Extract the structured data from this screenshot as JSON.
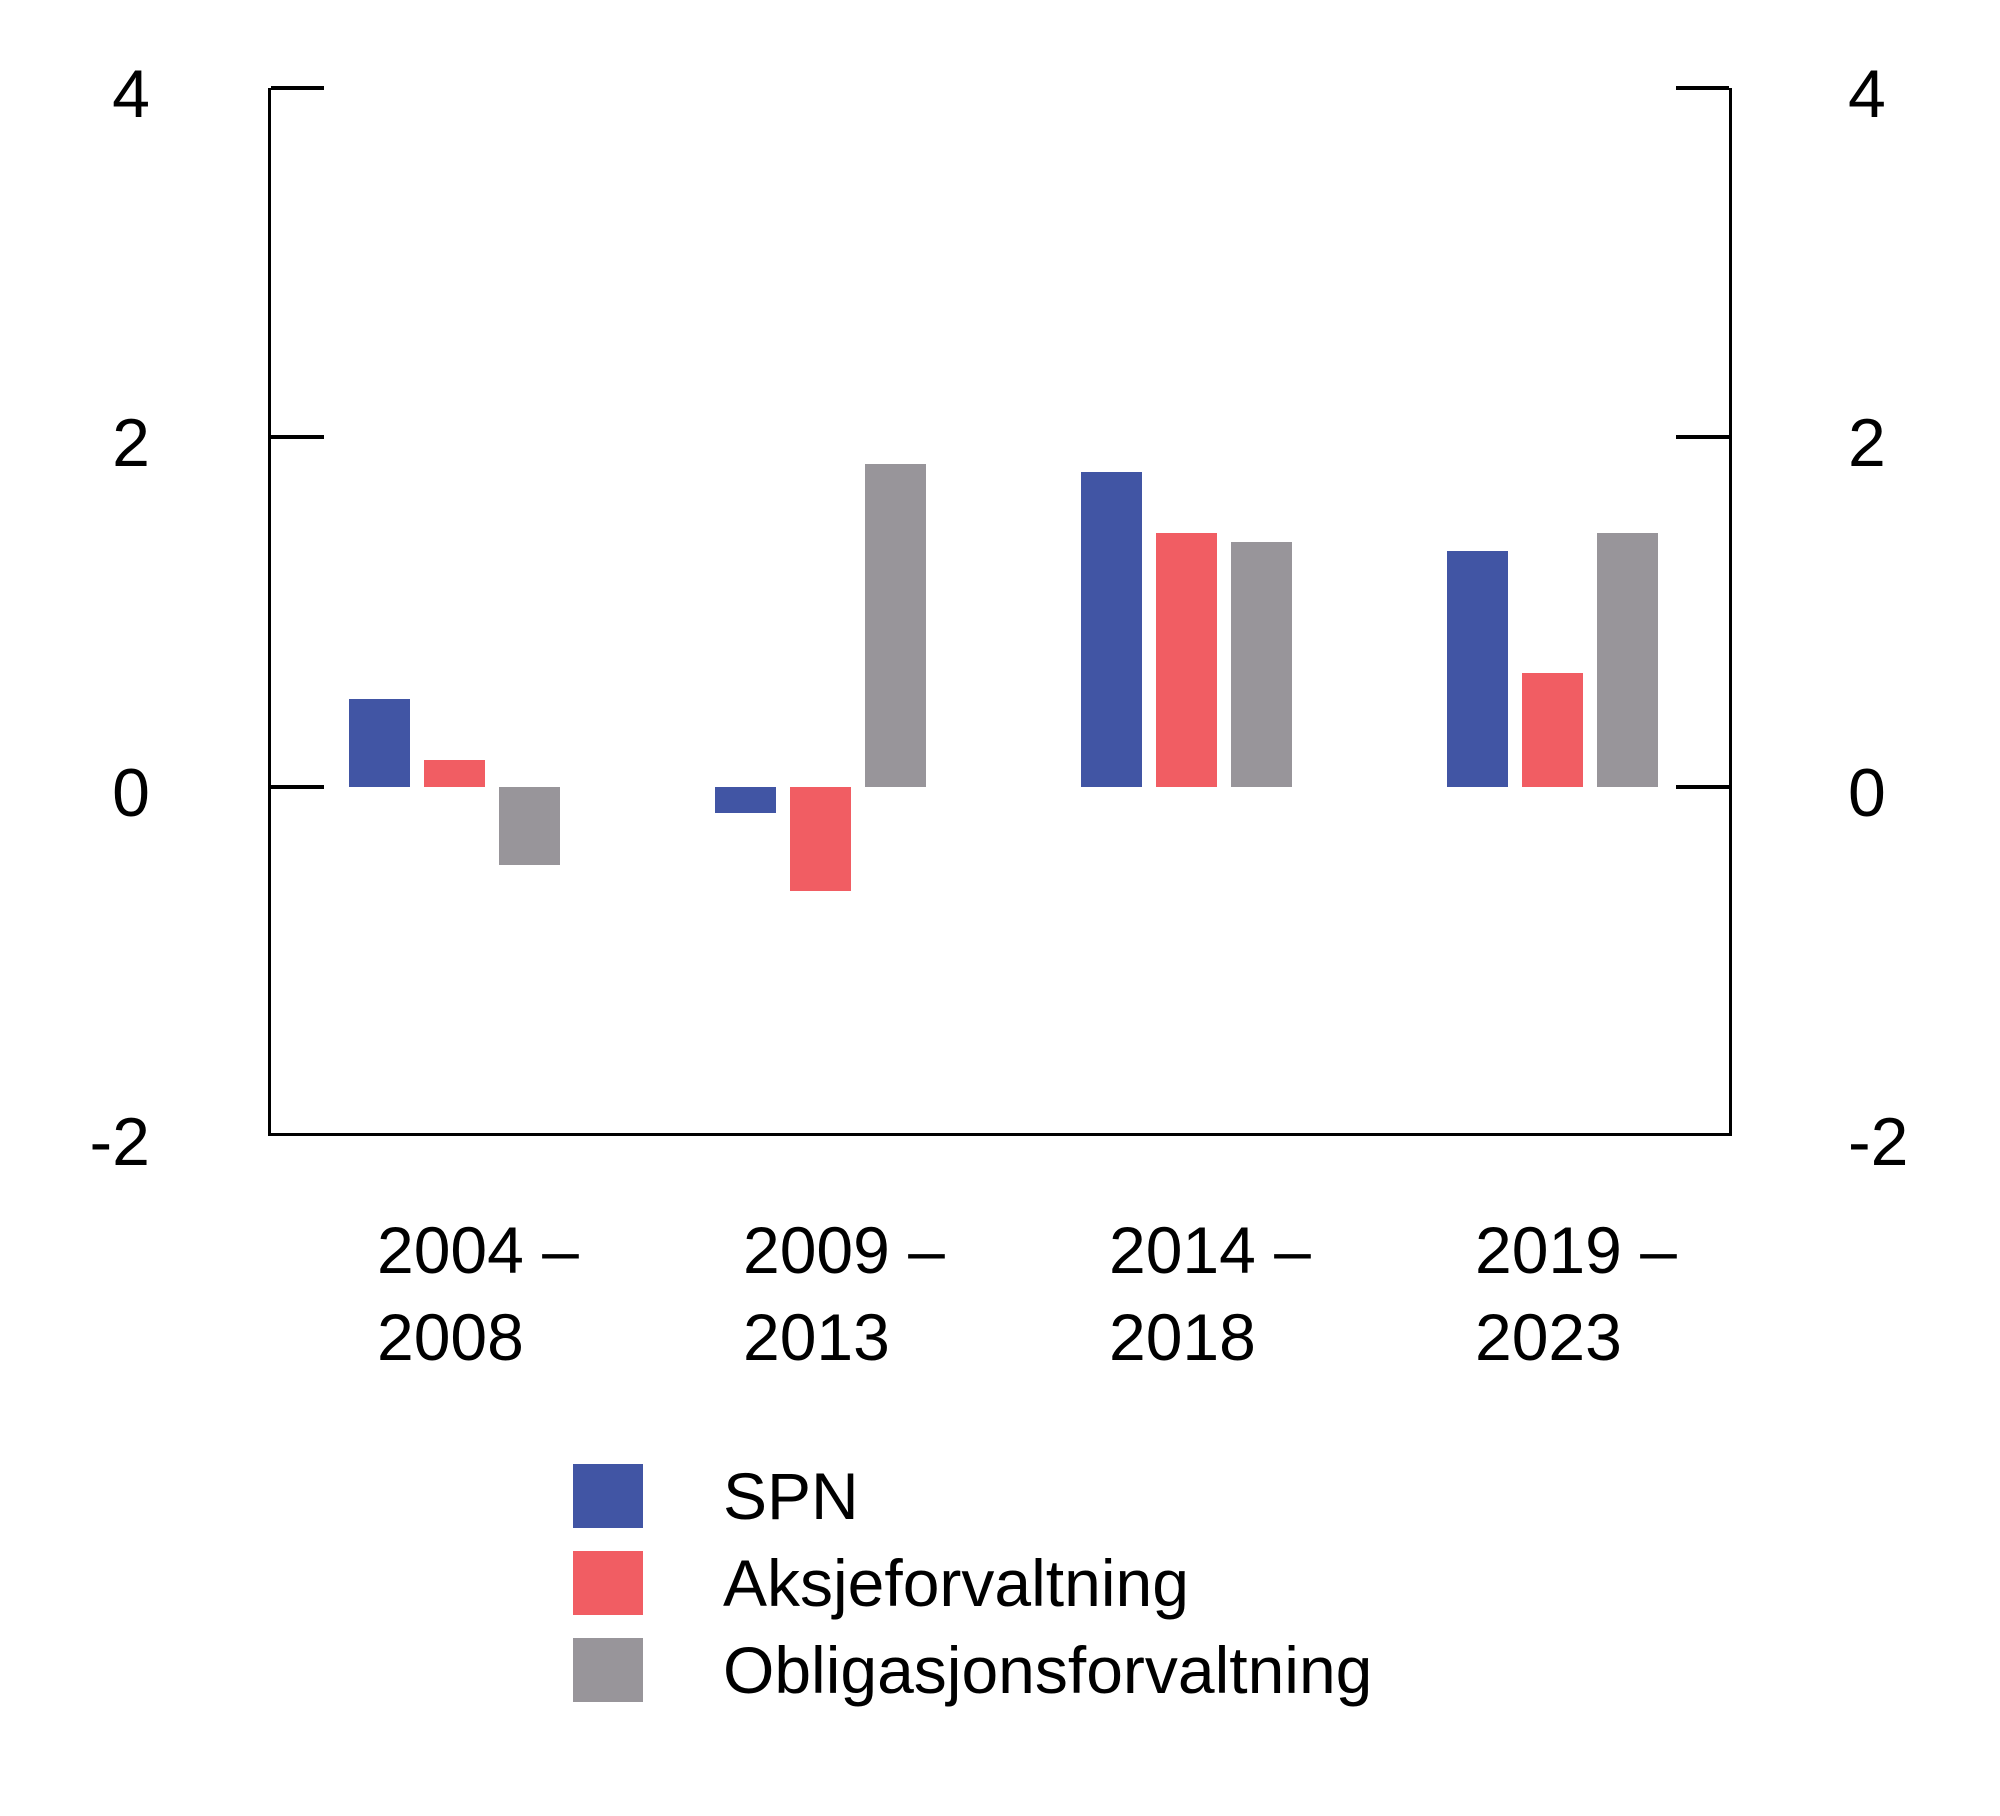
{
  "chart_data": {
    "type": "bar",
    "title": "",
    "categories": [
      {
        "line1": "2004 –",
        "line2": "2008"
      },
      {
        "line1": "2009 –",
        "line2": "2013"
      },
      {
        "line1": "2014 –",
        "line2": "2018"
      },
      {
        "line1": "2019 –",
        "line2": "2023"
      }
    ],
    "series": [
      {
        "name": "SPN",
        "color": "#4155A4",
        "values": [
          0.5,
          -0.15,
          1.8,
          1.35
        ]
      },
      {
        "name": "Aksjeforvaltning",
        "color": "#F15D63",
        "values": [
          0.15,
          -0.6,
          1.45,
          0.65
        ]
      },
      {
        "name": "Obligasjonsforvaltning",
        "color": "#98959A",
        "values": [
          -0.45,
          1.85,
          1.4,
          1.45
        ]
      }
    ],
    "y_axis": {
      "ticks": [
        4,
        2,
        0,
        -2
      ],
      "ylim": [
        -2,
        4
      ],
      "label_sides": "both",
      "tick_direction": "inward"
    },
    "xlabel": "",
    "ylabel": "",
    "grid": false,
    "legend_position": "bottom-left",
    "legend_entries": [
      "SPN",
      "Aksjeforvaltning",
      "Obligasjonsforvaltning"
    ]
  },
  "colors": {
    "background": "#FFFFFF",
    "axis": "#000000",
    "text": "#000000",
    "spn": "#4155A4",
    "aksjeforvaltning": "#F15D63",
    "obligasjonsforvaltning": "#98959A"
  }
}
